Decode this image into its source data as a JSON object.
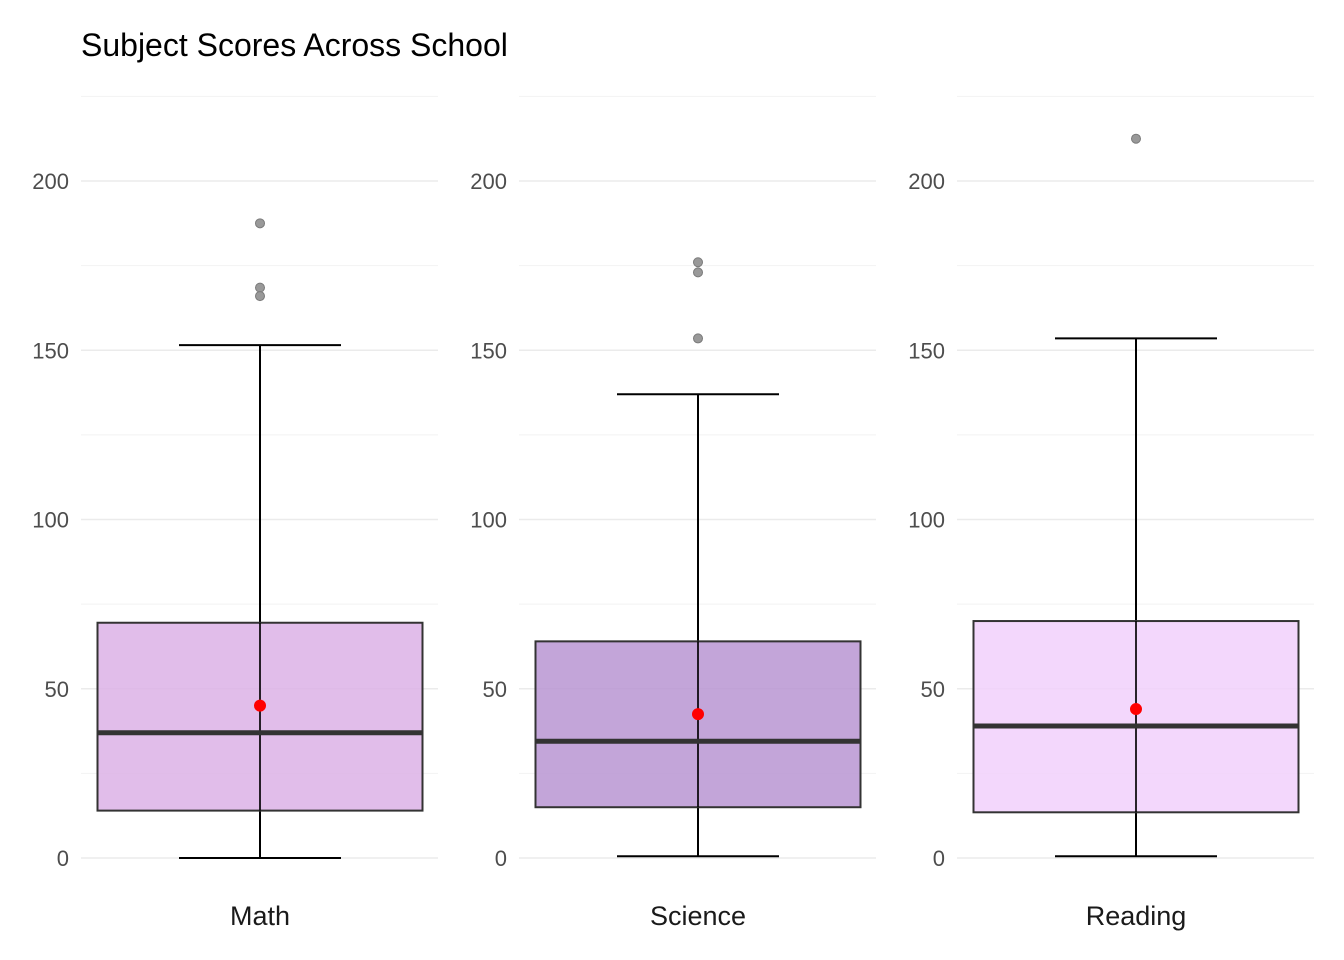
{
  "chart_data": {
    "type": "boxplot",
    "title": "Subject Scores Across School",
    "xlabel": "",
    "ylabel": "",
    "ylim": [
      -5,
      225
    ],
    "yticks": [
      0,
      50,
      100,
      150,
      200
    ],
    "grid": true,
    "colors": {
      "mean_marker": "#ff0000",
      "outlier": "#999999",
      "box_border": "#333333"
    },
    "panels": [
      {
        "category": "Math",
        "fill": "#dcb2e6",
        "whisker_low": 0,
        "q1": 14,
        "median": 37,
        "q3": 69.5,
        "whisker_high": 151.5,
        "mean": 45,
        "outliers": [
          187.5,
          168.5,
          166
        ]
      },
      {
        "category": "Science",
        "fill": "#b895d2",
        "whisker_low": 0.5,
        "q1": 15,
        "median": 34.5,
        "q3": 64,
        "whisker_high": 137,
        "mean": 42.5,
        "outliers": [
          176,
          173,
          153.5
        ]
      },
      {
        "category": "Reading",
        "fill": "#f1d0fb",
        "whisker_low": 0.5,
        "q1": 13.5,
        "median": 39,
        "q3": 70,
        "whisker_high": 153.5,
        "mean": 44,
        "outliers": [
          212.5
        ]
      }
    ]
  }
}
